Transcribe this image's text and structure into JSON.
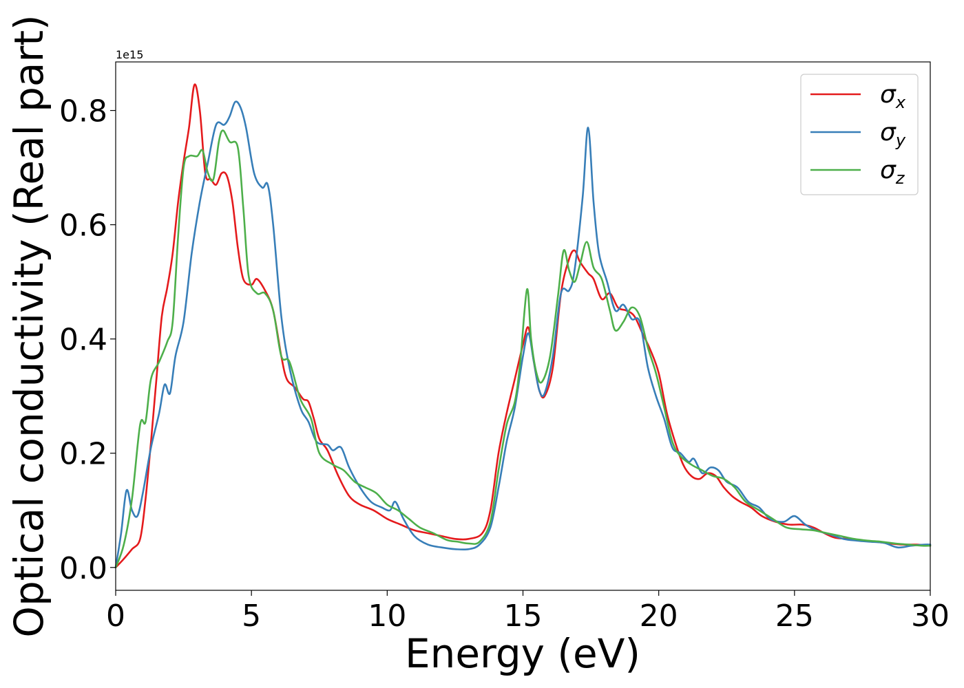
{
  "chart_data": {
    "type": "line",
    "xlabel": "Energy (eV)",
    "ylabel": "Optical conductivity (Real part)",
    "y_offset_text": "1e15",
    "xlim": [
      0,
      30
    ],
    "ylim": [
      -0.04,
      0.885
    ],
    "x_ticks": [
      0,
      5,
      10,
      15,
      20,
      25,
      30
    ],
    "x_tick_labels": [
      "0",
      "5",
      "10",
      "15",
      "20",
      "25",
      "30"
    ],
    "y_ticks": [
      0.0,
      0.2,
      0.4,
      0.6,
      0.8
    ],
    "y_tick_labels": [
      "0.0",
      "0.2",
      "0.4",
      "0.6",
      "0.8"
    ],
    "grid": false,
    "legend": {
      "position": "top-right"
    },
    "series": [
      {
        "name": "σ",
        "subscript": "x",
        "color": "#e41a1c",
        "points": [
          [
            0,
            0
          ],
          [
            0.3,
            0.015
          ],
          [
            0.6,
            0.032
          ],
          [
            0.9,
            0.05
          ],
          [
            1.1,
            0.12
          ],
          [
            1.3,
            0.22
          ],
          [
            1.5,
            0.33
          ],
          [
            1.7,
            0.44
          ],
          [
            1.9,
            0.49
          ],
          [
            2.1,
            0.55
          ],
          [
            2.3,
            0.64
          ],
          [
            2.5,
            0.71
          ],
          [
            2.7,
            0.77
          ],
          [
            2.9,
            0.845
          ],
          [
            3.1,
            0.8
          ],
          [
            3.3,
            0.69
          ],
          [
            3.5,
            0.68
          ],
          [
            3.7,
            0.67
          ],
          [
            3.9,
            0.69
          ],
          [
            4.1,
            0.685
          ],
          [
            4.3,
            0.64
          ],
          [
            4.5,
            0.56
          ],
          [
            4.7,
            0.505
          ],
          [
            5.0,
            0.495
          ],
          [
            5.2,
            0.505
          ],
          [
            5.5,
            0.485
          ],
          [
            5.8,
            0.45
          ],
          [
            6.1,
            0.37
          ],
          [
            6.3,
            0.33
          ],
          [
            6.6,
            0.315
          ],
          [
            6.9,
            0.295
          ],
          [
            7.1,
            0.29
          ],
          [
            7.3,
            0.26
          ],
          [
            7.5,
            0.225
          ],
          [
            7.8,
            0.205
          ],
          [
            8.2,
            0.16
          ],
          [
            8.6,
            0.125
          ],
          [
            9.0,
            0.11
          ],
          [
            9.5,
            0.1
          ],
          [
            10.0,
            0.085
          ],
          [
            10.5,
            0.075
          ],
          [
            11.0,
            0.065
          ],
          [
            11.5,
            0.06
          ],
          [
            12.0,
            0.055
          ],
          [
            12.5,
            0.05
          ],
          [
            13.0,
            0.05
          ],
          [
            13.5,
            0.06
          ],
          [
            13.8,
            0.1
          ],
          [
            14.1,
            0.2
          ],
          [
            14.4,
            0.27
          ],
          [
            14.7,
            0.33
          ],
          [
            15.0,
            0.39
          ],
          [
            15.2,
            0.42
          ],
          [
            15.4,
            0.36
          ],
          [
            15.6,
            0.31
          ],
          [
            15.8,
            0.3
          ],
          [
            16.1,
            0.35
          ],
          [
            16.4,
            0.48
          ],
          [
            16.7,
            0.54
          ],
          [
            16.9,
            0.555
          ],
          [
            17.1,
            0.535
          ],
          [
            17.4,
            0.515
          ],
          [
            17.6,
            0.505
          ],
          [
            17.9,
            0.47
          ],
          [
            18.2,
            0.48
          ],
          [
            18.5,
            0.455
          ],
          [
            18.8,
            0.45
          ],
          [
            19.1,
            0.44
          ],
          [
            19.4,
            0.41
          ],
          [
            19.7,
            0.38
          ],
          [
            20.0,
            0.34
          ],
          [
            20.3,
            0.27
          ],
          [
            20.6,
            0.22
          ],
          [
            20.9,
            0.18
          ],
          [
            21.2,
            0.16
          ],
          [
            21.5,
            0.155
          ],
          [
            21.8,
            0.165
          ],
          [
            22.1,
            0.16
          ],
          [
            22.4,
            0.14
          ],
          [
            22.7,
            0.125
          ],
          [
            23.0,
            0.115
          ],
          [
            23.4,
            0.105
          ],
          [
            23.8,
            0.09
          ],
          [
            24.3,
            0.08
          ],
          [
            24.8,
            0.075
          ],
          [
            25.3,
            0.075
          ],
          [
            25.7,
            0.07
          ],
          [
            26.1,
            0.06
          ],
          [
            26.5,
            0.052
          ],
          [
            27.0,
            0.05
          ],
          [
            27.5,
            0.047
          ],
          [
            28.0,
            0.045
          ],
          [
            28.5,
            0.042
          ],
          [
            29.0,
            0.04
          ],
          [
            29.5,
            0.04
          ],
          [
            30.0,
            0.038
          ]
        ]
      },
      {
        "name": "σ",
        "subscript": "y",
        "color": "#377eb8",
        "points": [
          [
            0,
            0
          ],
          [
            0.2,
            0.06
          ],
          [
            0.4,
            0.135
          ],
          [
            0.6,
            0.1
          ],
          [
            0.8,
            0.09
          ],
          [
            1.0,
            0.13
          ],
          [
            1.3,
            0.21
          ],
          [
            1.6,
            0.27
          ],
          [
            1.8,
            0.32
          ],
          [
            2.0,
            0.305
          ],
          [
            2.2,
            0.37
          ],
          [
            2.5,
            0.43
          ],
          [
            2.8,
            0.55
          ],
          [
            3.1,
            0.64
          ],
          [
            3.4,
            0.71
          ],
          [
            3.7,
            0.775
          ],
          [
            4.0,
            0.775
          ],
          [
            4.2,
            0.79
          ],
          [
            4.4,
            0.815
          ],
          [
            4.6,
            0.805
          ],
          [
            4.8,
            0.77
          ],
          [
            5.1,
            0.69
          ],
          [
            5.4,
            0.665
          ],
          [
            5.6,
            0.67
          ],
          [
            5.8,
            0.6
          ],
          [
            6.1,
            0.44
          ],
          [
            6.4,
            0.35
          ],
          [
            6.8,
            0.28
          ],
          [
            7.1,
            0.255
          ],
          [
            7.4,
            0.22
          ],
          [
            7.8,
            0.215
          ],
          [
            8.0,
            0.205
          ],
          [
            8.3,
            0.21
          ],
          [
            8.6,
            0.175
          ],
          [
            9.0,
            0.14
          ],
          [
            9.4,
            0.115
          ],
          [
            9.8,
            0.105
          ],
          [
            10.1,
            0.1
          ],
          [
            10.3,
            0.115
          ],
          [
            10.6,
            0.085
          ],
          [
            11.0,
            0.055
          ],
          [
            11.5,
            0.04
          ],
          [
            12.0,
            0.035
          ],
          [
            12.5,
            0.032
          ],
          [
            13.0,
            0.032
          ],
          [
            13.4,
            0.04
          ],
          [
            13.8,
            0.07
          ],
          [
            14.1,
            0.14
          ],
          [
            14.4,
            0.22
          ],
          [
            14.7,
            0.28
          ],
          [
            15.0,
            0.37
          ],
          [
            15.2,
            0.41
          ],
          [
            15.4,
            0.36
          ],
          [
            15.6,
            0.31
          ],
          [
            15.8,
            0.305
          ],
          [
            16.1,
            0.37
          ],
          [
            16.4,
            0.48
          ],
          [
            16.7,
            0.485
          ],
          [
            16.9,
            0.52
          ],
          [
            17.2,
            0.65
          ],
          [
            17.4,
            0.77
          ],
          [
            17.6,
            0.64
          ],
          [
            17.8,
            0.55
          ],
          [
            18.1,
            0.5
          ],
          [
            18.4,
            0.45
          ],
          [
            18.7,
            0.46
          ],
          [
            19.0,
            0.435
          ],
          [
            19.3,
            0.43
          ],
          [
            19.6,
            0.35
          ],
          [
            19.9,
            0.3
          ],
          [
            20.2,
            0.26
          ],
          [
            20.5,
            0.21
          ],
          [
            20.8,
            0.2
          ],
          [
            21.1,
            0.185
          ],
          [
            21.3,
            0.19
          ],
          [
            21.6,
            0.165
          ],
          [
            21.9,
            0.175
          ],
          [
            22.2,
            0.17
          ],
          [
            22.5,
            0.15
          ],
          [
            22.9,
            0.14
          ],
          [
            23.3,
            0.115
          ],
          [
            23.7,
            0.105
          ],
          [
            24.1,
            0.085
          ],
          [
            24.6,
            0.08
          ],
          [
            25.0,
            0.09
          ],
          [
            25.4,
            0.075
          ],
          [
            25.8,
            0.065
          ],
          [
            26.3,
            0.058
          ],
          [
            26.8,
            0.05
          ],
          [
            27.3,
            0.047
          ],
          [
            27.8,
            0.045
          ],
          [
            28.3,
            0.043
          ],
          [
            28.8,
            0.035
          ],
          [
            29.3,
            0.038
          ],
          [
            29.8,
            0.04
          ],
          [
            30.0,
            0.04
          ]
        ]
      },
      {
        "name": "σ",
        "subscript": "z",
        "color": "#4daf4a",
        "points": [
          [
            0,
            0
          ],
          [
            0.3,
            0.04
          ],
          [
            0.6,
            0.12
          ],
          [
            0.9,
            0.25
          ],
          [
            1.1,
            0.255
          ],
          [
            1.3,
            0.33
          ],
          [
            1.6,
            0.36
          ],
          [
            1.9,
            0.395
          ],
          [
            2.1,
            0.43
          ],
          [
            2.3,
            0.58
          ],
          [
            2.5,
            0.7
          ],
          [
            2.7,
            0.72
          ],
          [
            3.0,
            0.72
          ],
          [
            3.2,
            0.73
          ],
          [
            3.4,
            0.69
          ],
          [
            3.6,
            0.68
          ],
          [
            3.8,
            0.745
          ],
          [
            3.95,
            0.765
          ],
          [
            4.2,
            0.745
          ],
          [
            4.5,
            0.735
          ],
          [
            4.7,
            0.63
          ],
          [
            4.9,
            0.51
          ],
          [
            5.2,
            0.48
          ],
          [
            5.5,
            0.48
          ],
          [
            5.8,
            0.45
          ],
          [
            6.1,
            0.37
          ],
          [
            6.4,
            0.36
          ],
          [
            6.8,
            0.295
          ],
          [
            7.2,
            0.26
          ],
          [
            7.5,
            0.2
          ],
          [
            8.0,
            0.18
          ],
          [
            8.4,
            0.17
          ],
          [
            8.8,
            0.15
          ],
          [
            9.2,
            0.14
          ],
          [
            9.6,
            0.13
          ],
          [
            10.0,
            0.11
          ],
          [
            10.4,
            0.1
          ],
          [
            10.8,
            0.085
          ],
          [
            11.2,
            0.07
          ],
          [
            11.7,
            0.06
          ],
          [
            12.2,
            0.048
          ],
          [
            12.6,
            0.045
          ],
          [
            13.0,
            0.042
          ],
          [
            13.4,
            0.045
          ],
          [
            13.8,
            0.08
          ],
          [
            14.1,
            0.17
          ],
          [
            14.4,
            0.25
          ],
          [
            14.7,
            0.29
          ],
          [
            14.9,
            0.36
          ],
          [
            15.15,
            0.487
          ],
          [
            15.3,
            0.4
          ],
          [
            15.5,
            0.34
          ],
          [
            15.7,
            0.325
          ],
          [
            16.0,
            0.37
          ],
          [
            16.3,
            0.48
          ],
          [
            16.5,
            0.555
          ],
          [
            16.7,
            0.52
          ],
          [
            16.9,
            0.5
          ],
          [
            17.1,
            0.53
          ],
          [
            17.35,
            0.57
          ],
          [
            17.6,
            0.525
          ],
          [
            17.9,
            0.505
          ],
          [
            18.2,
            0.45
          ],
          [
            18.4,
            0.415
          ],
          [
            18.7,
            0.43
          ],
          [
            19.0,
            0.455
          ],
          [
            19.3,
            0.44
          ],
          [
            19.6,
            0.385
          ],
          [
            19.9,
            0.34
          ],
          [
            20.2,
            0.28
          ],
          [
            20.5,
            0.22
          ],
          [
            20.8,
            0.195
          ],
          [
            21.2,
            0.18
          ],
          [
            21.6,
            0.17
          ],
          [
            22.0,
            0.16
          ],
          [
            22.4,
            0.155
          ],
          [
            22.8,
            0.14
          ],
          [
            23.2,
            0.115
          ],
          [
            23.7,
            0.1
          ],
          [
            24.2,
            0.085
          ],
          [
            24.7,
            0.07
          ],
          [
            25.2,
            0.067
          ],
          [
            25.7,
            0.065
          ],
          [
            26.2,
            0.06
          ],
          [
            26.7,
            0.055
          ],
          [
            27.2,
            0.05
          ],
          [
            27.7,
            0.047
          ],
          [
            28.2,
            0.045
          ],
          [
            28.7,
            0.042
          ],
          [
            29.2,
            0.04
          ],
          [
            29.7,
            0.038
          ],
          [
            30.0,
            0.038
          ]
        ]
      }
    ]
  }
}
